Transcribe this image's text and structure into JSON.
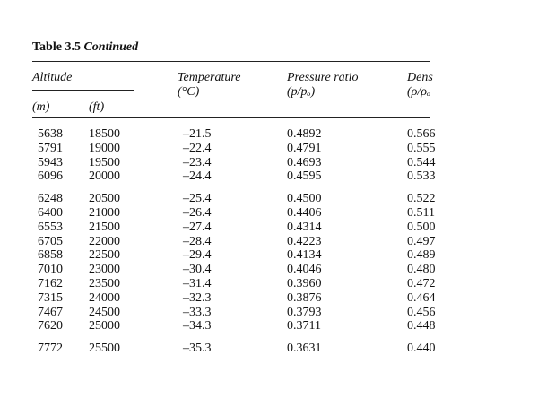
{
  "table": {
    "caption_label": "Table 3.5",
    "caption_suffix": "Continued",
    "headers": {
      "altitude": "Altitude",
      "m": "(m)",
      "ft": "(ft)",
      "temperature": "Temperature",
      "temperature_unit": "(°C)",
      "pressure_ratio": "Pressure ratio",
      "pressure_ratio_symbol": "(p/pₒ)",
      "density_ratio": "Dens",
      "density_ratio_symbol": "(ρ/ρₒ"
    },
    "groups": [
      [
        {
          "m": "5638",
          "ft": "18500",
          "temp": "–21.5",
          "pressure": "0.4892",
          "density": "0.566"
        },
        {
          "m": "5791",
          "ft": "19000",
          "temp": "–22.4",
          "pressure": "0.4791",
          "density": "0.555"
        },
        {
          "m": "5943",
          "ft": "19500",
          "temp": "–23.4",
          "pressure": "0.4693",
          "density": "0.544"
        },
        {
          "m": "6096",
          "ft": "20000",
          "temp": "–24.4",
          "pressure": "0.4595",
          "density": "0.533"
        }
      ],
      [
        {
          "m": "6248",
          "ft": "20500",
          "temp": "–25.4",
          "pressure": "0.4500",
          "density": "0.522"
        },
        {
          "m": "6400",
          "ft": "21000",
          "temp": "–26.4",
          "pressure": "0.4406",
          "density": "0.511"
        },
        {
          "m": "6553",
          "ft": "21500",
          "temp": "–27.4",
          "pressure": "0.4314",
          "density": "0.500"
        },
        {
          "m": "6705",
          "ft": "22000",
          "temp": "–28.4",
          "pressure": "0.4223",
          "density": "0.497"
        },
        {
          "m": "6858",
          "ft": "22500",
          "temp": "–29.4",
          "pressure": "0.4134",
          "density": "0.489"
        },
        {
          "m": "7010",
          "ft": "23000",
          "temp": "–30.4",
          "pressure": "0.4046",
          "density": "0.480"
        },
        {
          "m": "7162",
          "ft": "23500",
          "temp": "–31.4",
          "pressure": "0.3960",
          "density": "0.472"
        },
        {
          "m": "7315",
          "ft": "24000",
          "temp": "–32.3",
          "pressure": "0.3876",
          "density": "0.464"
        },
        {
          "m": "7467",
          "ft": "24500",
          "temp": "–33.3",
          "pressure": "0.3793",
          "density": "0.456"
        },
        {
          "m": "7620",
          "ft": "25000",
          "temp": "–34.3",
          "pressure": "0.3711",
          "density": "0.448"
        }
      ],
      [
        {
          "m": "7772",
          "ft": "25500",
          "temp": "–35.3",
          "pressure": "0.3631",
          "density": "0.440"
        }
      ]
    ]
  }
}
